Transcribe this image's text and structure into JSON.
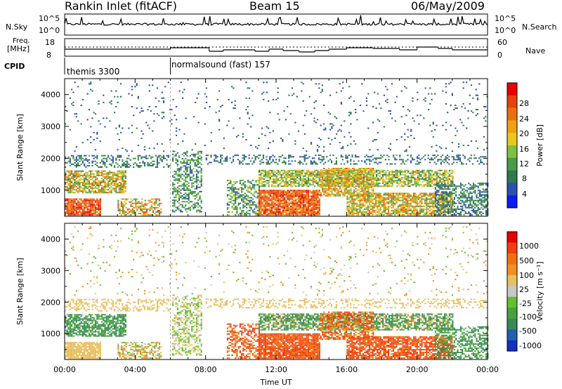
{
  "header": {
    "station": "Rankin Inlet (fitACF)",
    "beam": "Beam 15",
    "date": "06/May/2009"
  },
  "panels": {
    "noise": {
      "left_label": "N.Sky",
      "right_label": "N.Search",
      "left_ticks": [
        "10^5",
        "10^0"
      ],
      "right_ticks": [
        "10^5",
        "10^0"
      ]
    },
    "freq": {
      "left_label_1": "Freq.",
      "left_label_2": "[MHz]",
      "right_label": "Nave",
      "left_ticks": [
        "18",
        "8"
      ],
      "right_ticks": [
        "60",
        "0"
      ]
    },
    "cpid": {
      "label": "CPID",
      "programs": [
        {
          "name": "themis 3300",
          "start_hour": 0,
          "end_hour": 6
        },
        {
          "name": "normalsound (fast) 157",
          "start_hour": 6,
          "end_hour": 24
        }
      ]
    }
  },
  "chart_data": [
    {
      "type": "heatmap",
      "name": "Power",
      "ylabel": "Slant Range [km]",
      "xlim": [
        0,
        24
      ],
      "ylim": [
        180,
        4500
      ],
      "yticks": [
        "1000",
        "2000",
        "3000",
        "4000"
      ],
      "colorbar": {
        "label": "Power [dB]",
        "ticks": [
          "4",
          "8",
          "12",
          "16",
          "20",
          "24",
          "28"
        ],
        "colors": [
          "#0a1cf0",
          "#2a50b0",
          "#2e7a4c",
          "#4a9a48",
          "#80c040",
          "#e8c820",
          "#f0a010",
          "#e87010",
          "#e84010",
          "#e80000"
        ]
      }
    },
    {
      "type": "heatmap",
      "name": "Velocity",
      "ylabel": "Slant Range [km]",
      "xlim": [
        0,
        24
      ],
      "ylim": [
        180,
        4500
      ],
      "yticks": [
        "1000",
        "2000",
        "3000",
        "4000"
      ],
      "colorbar": {
        "label": "Velocity [m s⁻¹]",
        "ticks": [
          "1000",
          "500",
          "100",
          "25",
          "-25",
          "-100",
          "-500",
          "-1000"
        ],
        "colors": [
          "#1030c0",
          "#2060b0",
          "#3a8a58",
          "#48a040",
          "#60c030",
          "#c8c8c8",
          "#e8c060",
          "#f09020",
          "#f07010",
          "#f04010",
          "#e80000"
        ]
      }
    }
  ],
  "xaxis": {
    "label": "Time UT",
    "ticks": [
      "00:00",
      "04:00",
      "08:00",
      "12:00",
      "16:00",
      "20:00",
      "00:00"
    ]
  }
}
